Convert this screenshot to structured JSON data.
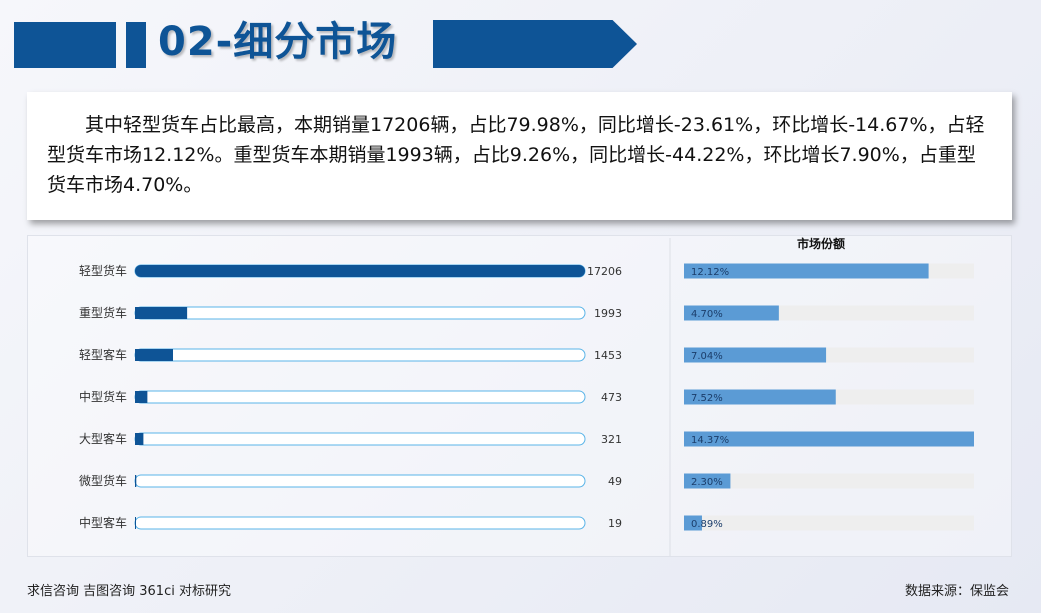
{
  "header": {
    "title": "02-细分市场"
  },
  "summary": {
    "text": "其中轻型货车占比最高，本期销量17206辆，占比79.98%，同比增长-23.61%，环比增长-14.67%，占轻型货车市场12.12%。重型货车本期销量1993辆，占比9.26%，同比增长-44.22%，环比增长7.90%，占重型货车市场4.70%。"
  },
  "chart_data": [
    {
      "type": "bar",
      "orientation": "horizontal",
      "categories": [
        "轻型货车",
        "重型货车",
        "轻型客车",
        "中型货车",
        "大型客车",
        "微型货车",
        "中型客车"
      ],
      "values": [
        17206,
        1993,
        1453,
        473,
        321,
        49,
        19
      ],
      "xlim": [
        0,
        17206
      ],
      "colors": {
        "bar": "#0e5496",
        "track_border": "#5ab4e8"
      }
    },
    {
      "type": "bar",
      "orientation": "horizontal",
      "title": "市场份额",
      "categories": [
        "轻型货车",
        "重型货车",
        "轻型客车",
        "中型货车",
        "大型客车",
        "微型货车",
        "中型客车"
      ],
      "values": [
        12.12,
        4.7,
        7.04,
        7.52,
        14.37,
        2.3,
        0.89
      ],
      "labels": [
        "12.12%",
        "4.70%",
        "7.04%",
        "7.52%",
        "14.37%",
        "2.30%",
        "0.89%"
      ],
      "xlim": [
        0,
        14.37
      ],
      "colors": {
        "bar": "#5b9bd5",
        "track": "#eeeeee"
      }
    }
  ],
  "footer": {
    "left": "求信咨询 吉图咨询 361ci 对标研究",
    "right": "数据来源：保监会"
  }
}
